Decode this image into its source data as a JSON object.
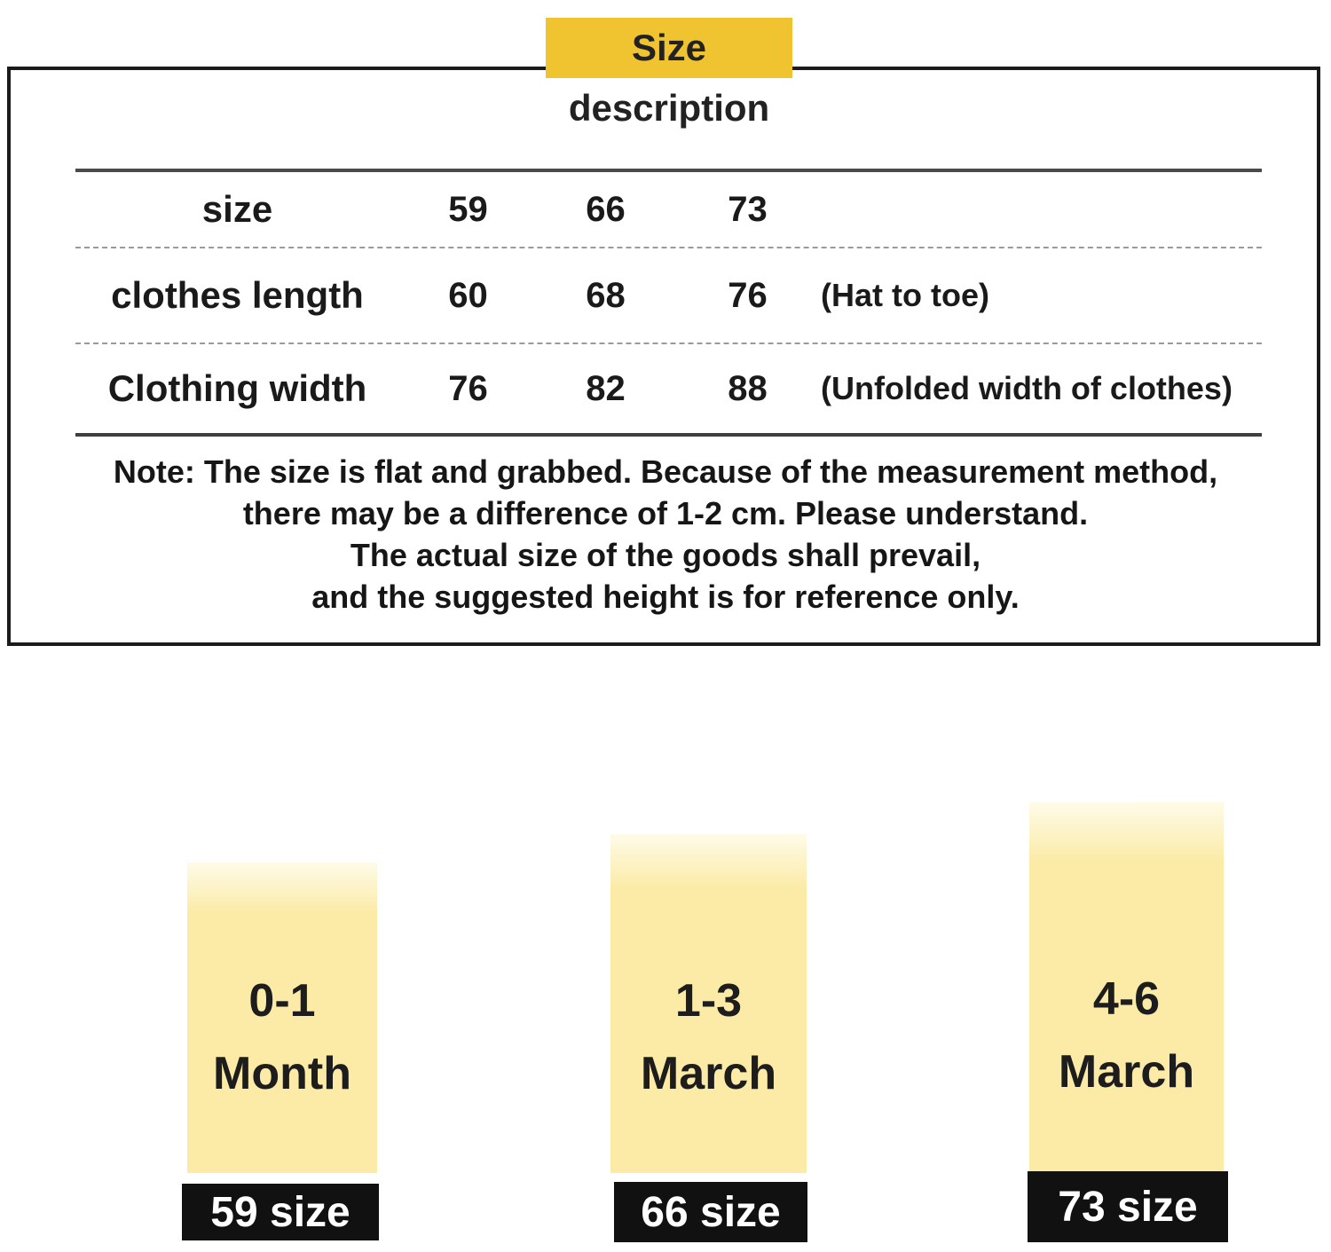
{
  "title": "Size description",
  "table": {
    "rows": [
      {
        "label": "size",
        "v1": "59",
        "v2": "66",
        "v3": "73",
        "note": ""
      },
      {
        "label": "clothes length",
        "v1": "60",
        "v2": "68",
        "v3": "76",
        "note": "(Hat to toe)"
      },
      {
        "label": "Clothing width",
        "v1": "76",
        "v2": "82",
        "v3": "88",
        "note": "(Unfolded width of clothes)"
      }
    ]
  },
  "note": {
    "line1": "Note: The size is flat and grabbed. Because of the measurement method,",
    "line2": "there may be a difference of 1-2 cm. Please understand.",
    "line3": "The actual size of the goods shall prevail,",
    "line4": "and the suggested height is for reference only."
  },
  "cards": [
    {
      "age_top": "0-1",
      "age_bottom": "Month",
      "size_label": "59 size"
    },
    {
      "age_top": "1-3",
      "age_bottom": "March",
      "size_label": "66 size"
    },
    {
      "age_top": "4-6",
      "age_bottom": "March",
      "size_label": "73 size"
    }
  ],
  "colors": {
    "highlight_gold": "#f0c330",
    "card_yellow": "#fbeba7",
    "label_black": "#111111"
  }
}
